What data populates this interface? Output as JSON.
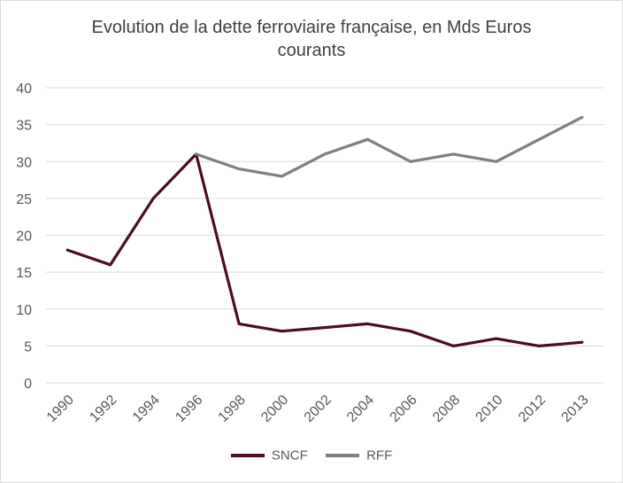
{
  "chart_data": {
    "type": "line",
    "title": "Evolution de la dette ferroviaire française, en Mds Euros courants",
    "title_lines": [
      "Evolution de la dette ferroviaire française, en Mds Euros",
      "courants"
    ],
    "categories": [
      "1990",
      "1992",
      "1994",
      "1996",
      "1998",
      "2000",
      "2002",
      "2004",
      "2006",
      "2008",
      "2010",
      "2012",
      "2013"
    ],
    "ylim": [
      0,
      40
    ],
    "yticks": [
      0,
      5,
      10,
      15,
      20,
      25,
      30,
      35,
      40
    ],
    "grid": true,
    "legend_position": "bottom",
    "series": [
      {
        "name": "SNCF",
        "color": "#4b0d24",
        "values": [
          18,
          16,
          25,
          31,
          8,
          7,
          7.5,
          8,
          7,
          5,
          6,
          5,
          5.5
        ]
      },
      {
        "name": "RFF",
        "color": "#7f7f7f",
        "values": [
          null,
          null,
          null,
          31,
          29,
          28,
          31,
          33,
          30,
          31,
          30,
          33,
          36
        ]
      }
    ]
  }
}
